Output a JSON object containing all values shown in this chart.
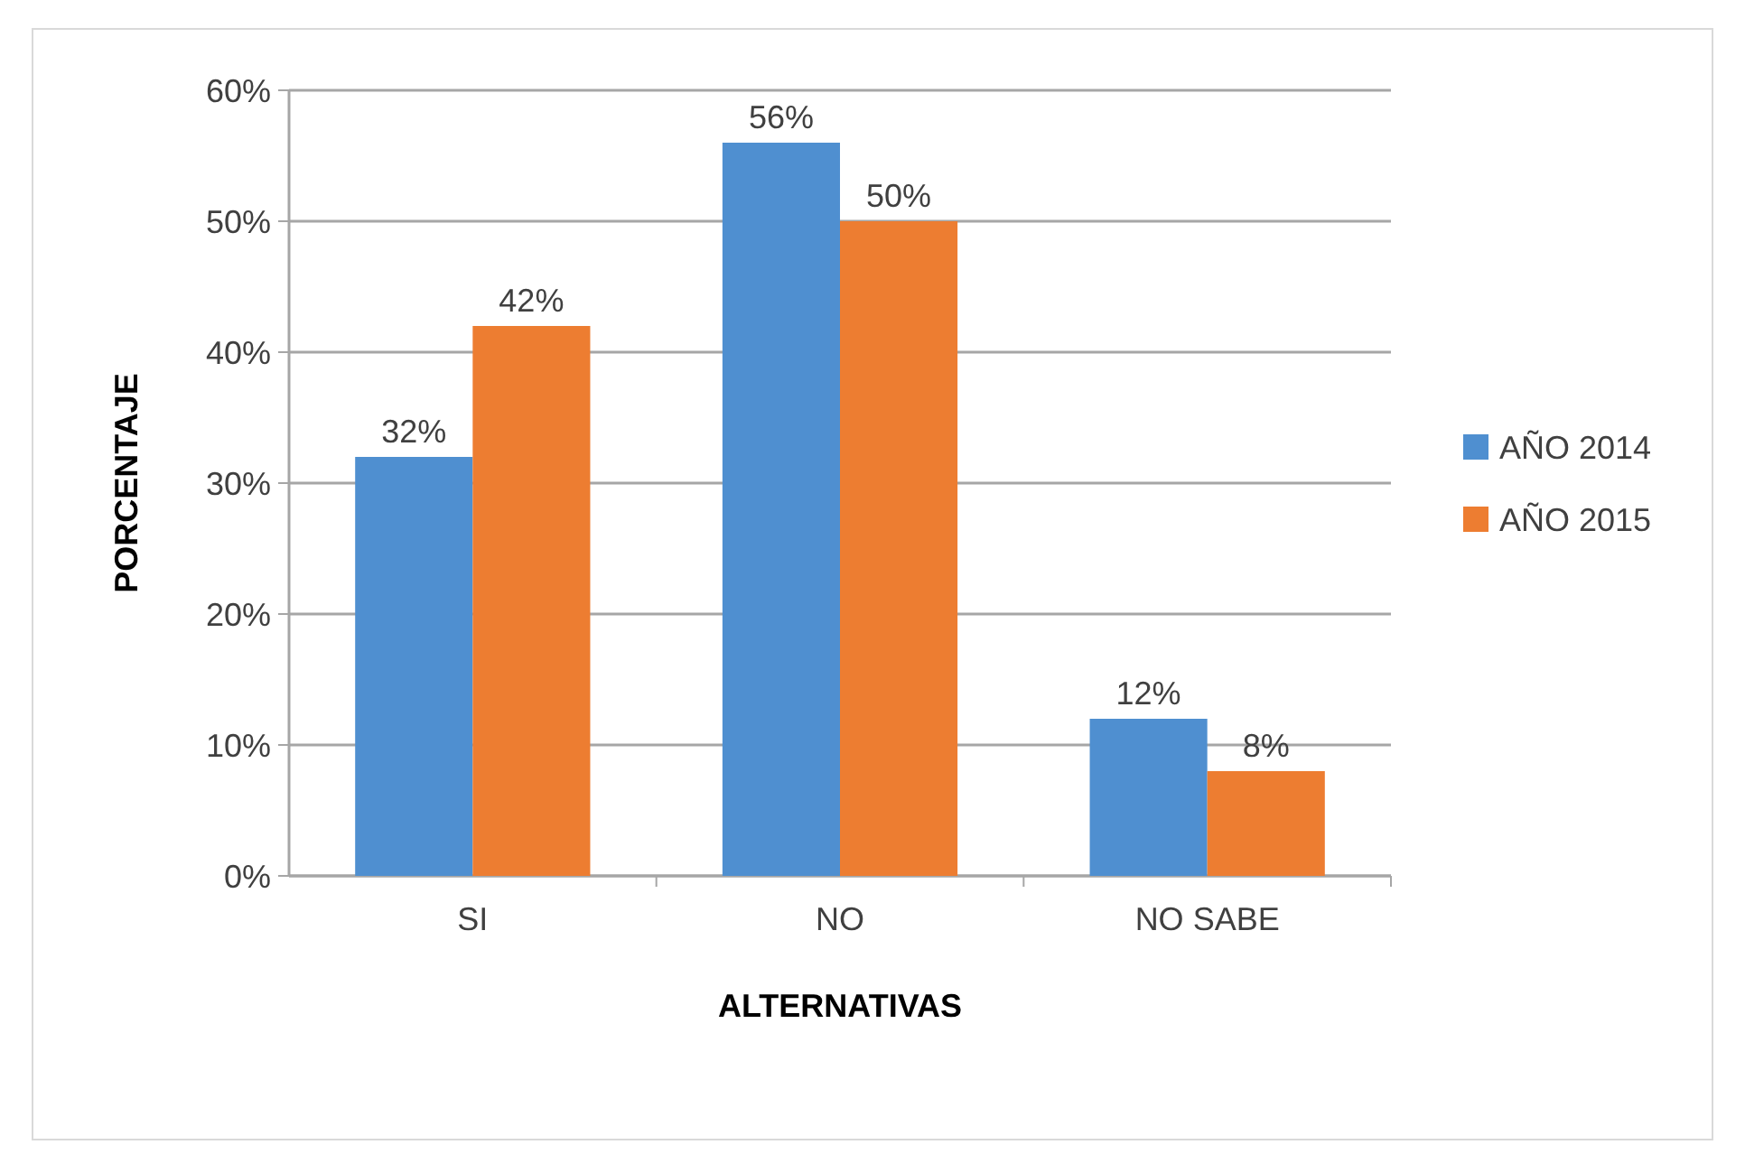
{
  "chart_data": {
    "type": "bar",
    "xlabel": "ALTERNATIVAS",
    "ylabel": "PORCENTAJE",
    "categories": [
      "SI",
      "NO",
      "NO SABE"
    ],
    "series": [
      {
        "name": "AÑO 2014",
        "color": "#4f8fd0",
        "values": [
          32,
          56,
          12
        ],
        "value_labels": [
          "32%",
          "56%",
          "12%"
        ]
      },
      {
        "name": "AÑO 2015",
        "color": "#ed7d31",
        "values": [
          42,
          50,
          8
        ],
        "value_labels": [
          "42%",
          "50%",
          "8%"
        ]
      }
    ],
    "ylim": [
      0,
      60
    ],
    "yticks": [
      {
        "value": 0,
        "label": "0%"
      },
      {
        "value": 10,
        "label": "10%"
      },
      {
        "value": 20,
        "label": "20%"
      },
      {
        "value": 30,
        "label": "30%"
      },
      {
        "value": 40,
        "label": "40%"
      },
      {
        "value": 50,
        "label": "50%"
      },
      {
        "value": 60,
        "label": "60%"
      }
    ],
    "grid": "y",
    "legend": "right"
  }
}
